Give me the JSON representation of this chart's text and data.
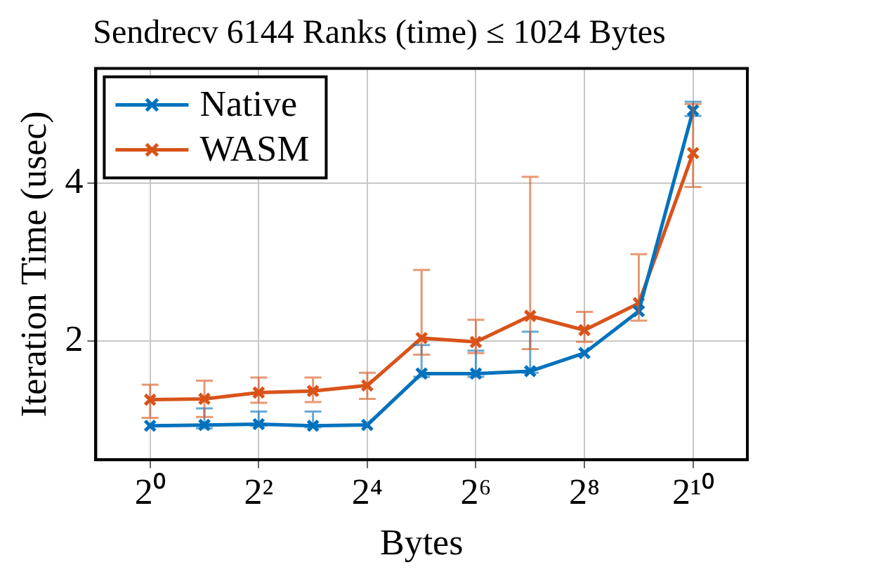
{
  "chart_data": {
    "type": "line",
    "title": "Sendrecv 6144 Ranks (time) ≤ 1024 Bytes",
    "xlabel": "Bytes",
    "ylabel": "Iteration Time (usec)",
    "x": [
      1,
      2,
      4,
      8,
      16,
      32,
      64,
      128,
      256,
      512,
      1024
    ],
    "series": [
      {
        "name": "Native",
        "color": "#0072bd",
        "values": [
          0.93,
          0.94,
          0.95,
          0.93,
          0.94,
          1.59,
          1.59,
          1.62,
          1.85,
          2.38,
          4.92
        ],
        "errors": [
          null,
          [
            0.9,
            1.15
          ],
          [
            0.93,
            1.11
          ],
          [
            0.91,
            1.11
          ],
          null,
          [
            1.55,
            1.95
          ],
          [
            1.55,
            1.88
          ],
          [
            1.6,
            2.12
          ],
          null,
          null,
          [
            4.85,
            5.03
          ]
        ]
      },
      {
        "name": "WASM",
        "color": "#d95319",
        "values": [
          1.26,
          1.27,
          1.35,
          1.37,
          1.44,
          2.04,
          1.99,
          2.32,
          2.14,
          2.48,
          4.38
        ],
        "errors": [
          [
            1.03,
            1.45
          ],
          [
            1.04,
            1.5
          ],
          [
            1.22,
            1.54
          ],
          [
            1.23,
            1.54
          ],
          [
            1.27,
            1.6
          ],
          [
            1.83,
            2.9
          ],
          [
            1.85,
            2.27
          ],
          [
            1.9,
            4.08
          ],
          [
            1.99,
            2.37
          ],
          [
            2.26,
            3.1
          ],
          [
            3.95,
            5.0
          ]
        ]
      }
    ],
    "log": "x",
    "xlim": [
      0.5,
      2048
    ],
    "ylim": [
      0.5,
      5.45
    ],
    "xticks": [
      {
        "value": 1,
        "label": "2⁰"
      },
      {
        "value": 4,
        "label": "2²"
      },
      {
        "value": 16,
        "label": "2⁴"
      },
      {
        "value": 64,
        "label": "2⁶"
      },
      {
        "value": 256,
        "label": "2⁸"
      },
      {
        "value": 1024,
        "label": "2¹⁰"
      }
    ],
    "yticks": [
      2,
      4
    ],
    "grid": true,
    "legend": "top left",
    "marker": "cross",
    "line_style": "solid"
  }
}
